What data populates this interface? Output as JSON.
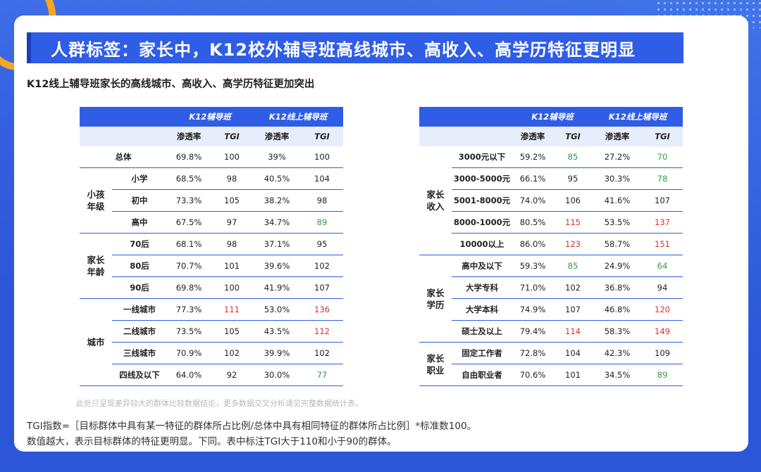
{
  "title": "人群标签：家长中，K12校外辅导班高线城市、高收入、高学历特征更明显",
  "subtitle": "K12线上辅导班家长的高线城市、高收入、高学历特征更加突出",
  "headers": {
    "k12": "K12辅导班",
    "k12_online": "K12线上辅导班",
    "rate": "渗透率",
    "tgi": "TGI"
  },
  "left_table": {
    "total_label": "总体",
    "total": [
      "69.8%",
      "100",
      "39%",
      "100"
    ],
    "groups": [
      {
        "name": "小孩\n年级",
        "rows": [
          {
            "label": "小学",
            "v": [
              "68.5%",
              "98",
              "40.5%",
              "104"
            ],
            "c": [
              "",
              "",
              "",
              ""
            ]
          },
          {
            "label": "初中",
            "v": [
              "73.3%",
              "105",
              "38.2%",
              "98"
            ],
            "c": [
              "",
              "",
              "",
              ""
            ]
          },
          {
            "label": "高中",
            "v": [
              "67.5%",
              "97",
              "34.7%",
              "89"
            ],
            "c": [
              "",
              "",
              "",
              "green"
            ]
          }
        ]
      },
      {
        "name": "家长\n年龄",
        "rows": [
          {
            "label": "70后",
            "v": [
              "68.1%",
              "98",
              "37.1%",
              "95"
            ],
            "c": [
              "",
              "",
              "",
              ""
            ]
          },
          {
            "label": "80后",
            "v": [
              "70.7%",
              "101",
              "39.6%",
              "102"
            ],
            "c": [
              "",
              "",
              "",
              ""
            ]
          },
          {
            "label": "90后",
            "v": [
              "69.8%",
              "100",
              "41.9%",
              "107"
            ],
            "c": [
              "",
              "",
              "",
              ""
            ]
          }
        ]
      },
      {
        "name": "城市",
        "rows": [
          {
            "label": "一线城市",
            "v": [
              "77.3%",
              "111",
              "53.0%",
              "136"
            ],
            "c": [
              "",
              "red",
              "",
              "red"
            ]
          },
          {
            "label": "二线城市",
            "v": [
              "73.5%",
              "105",
              "43.5%",
              "112"
            ],
            "c": [
              "",
              "",
              "",
              "red"
            ]
          },
          {
            "label": "三线城市",
            "v": [
              "70.9%",
              "102",
              "39.9%",
              "102"
            ],
            "c": [
              "",
              "",
              "",
              ""
            ]
          },
          {
            "label": "四线及以下",
            "v": [
              "64.0%",
              "92",
              "30.0%",
              "77"
            ],
            "c": [
              "",
              "",
              "",
              "green"
            ]
          }
        ]
      }
    ]
  },
  "right_table": {
    "groups": [
      {
        "name": "家长\n收入",
        "rows": [
          {
            "label": "3000元以下",
            "v": [
              "59.2%",
              "85",
              "27.2%",
              "70"
            ],
            "c": [
              "",
              "green",
              "",
              "green"
            ]
          },
          {
            "label": "3000-5000元",
            "v": [
              "66.1%",
              "95",
              "30.3%",
              "78"
            ],
            "c": [
              "",
              "",
              "",
              "green"
            ]
          },
          {
            "label": "5001-8000元",
            "v": [
              "74.0%",
              "106",
              "41.6%",
              "107"
            ],
            "c": [
              "",
              "",
              "",
              ""
            ]
          },
          {
            "label": "8000-1000元",
            "v": [
              "80.5%",
              "115",
              "53.5%",
              "137"
            ],
            "c": [
              "",
              "red",
              "",
              "red"
            ]
          },
          {
            "label": "10000以上",
            "v": [
              "86.0%",
              "123",
              "58.7%",
              "151"
            ],
            "c": [
              "",
              "red",
              "",
              "red"
            ]
          }
        ]
      },
      {
        "name": "家长\n学历",
        "rows": [
          {
            "label": "高中及以下",
            "v": [
              "59.3%",
              "85",
              "24.9%",
              "64"
            ],
            "c": [
              "",
              "green",
              "",
              "green"
            ]
          },
          {
            "label": "大学专科",
            "v": [
              "71.0%",
              "102",
              "36.8%",
              "94"
            ],
            "c": [
              "",
              "",
              "",
              ""
            ]
          },
          {
            "label": "大学本科",
            "v": [
              "74.9%",
              "107",
              "46.8%",
              "120"
            ],
            "c": [
              "",
              "",
              "",
              "red"
            ]
          },
          {
            "label": "硕士及以上",
            "v": [
              "79.4%",
              "114",
              "58.3%",
              "149"
            ],
            "c": [
              "",
              "red",
              "",
              "red"
            ]
          }
        ]
      },
      {
        "name": "家长\n职业",
        "rows": [
          {
            "label": "固定工作者",
            "v": [
              "72.8%",
              "104",
              "42.3%",
              "109"
            ],
            "c": [
              "",
              "",
              "",
              ""
            ]
          },
          {
            "label": "自由职业者",
            "v": [
              "70.6%",
              "101",
              "34.5%",
              "89"
            ],
            "c": [
              "",
              "",
              "",
              "green"
            ]
          }
        ]
      }
    ]
  },
  "note": "此处只呈现差异较大的群体比较数据结论，更多数据交叉分析请见完整数据统计表。",
  "footer_line1": "TGI指数=［目标群体中具有某一特征的群体所占比例/总体中具有相同特征的群体所占比例］*标准数100。",
  "footer_line2": "数值越大，表示目标群体的特征更明显。下同。表中标注TGI大于110和小于90的群体。",
  "colors": {
    "primary": "#2f5de6",
    "red": "#e0302c",
    "green": "#2f9e3a"
  }
}
